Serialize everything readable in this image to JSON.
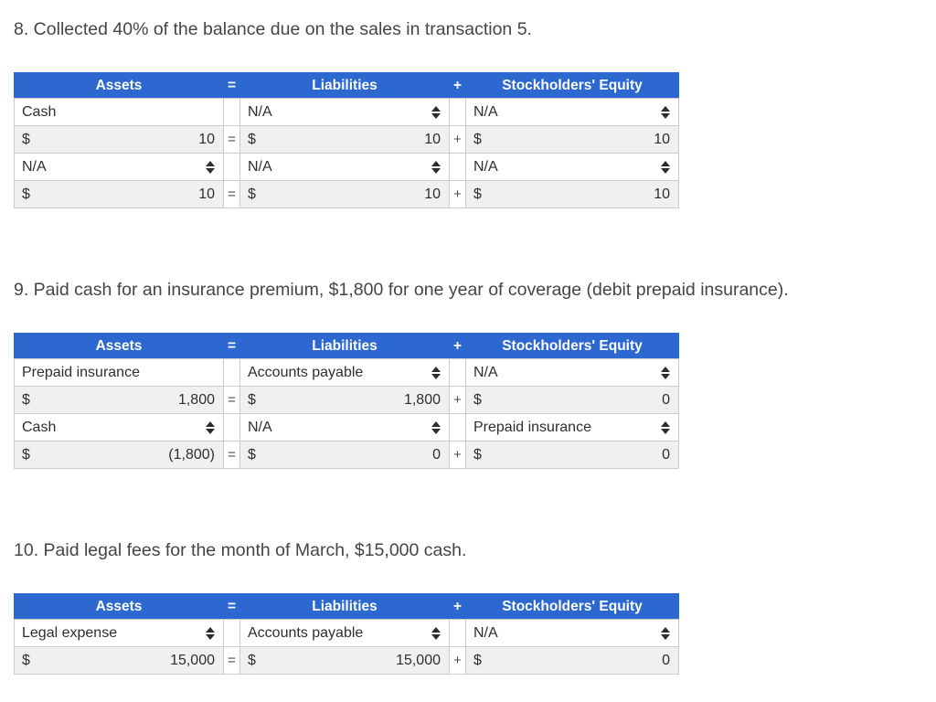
{
  "colors": {
    "header_bg": "#2c68d0",
    "header_text": "#ffffff",
    "stripe_bg": "#f0f0f1",
    "border": "#cbcbcb",
    "text": "#2e2e2e",
    "title": "#454545",
    "operator": "#4f4f4f"
  },
  "icons": {
    "dropdown": "up-down-arrows"
  },
  "table_header": {
    "assets": "Assets",
    "equals": "=",
    "liabilities": "Liabilities",
    "plus": "+",
    "equity": "Stockholders' Equity"
  },
  "operators": {
    "equals": "=",
    "plus": "+",
    "dollar": "$"
  },
  "sections": [
    {
      "title": "8. Collected 40% of the balance due on the sales in transaction 5.",
      "rows": [
        {
          "kind": "accounts",
          "accounts": [
            {
              "label": "Cash",
              "dropdown": false
            },
            {
              "label": "N/A",
              "dropdown": true
            },
            {
              "label": "N/A",
              "dropdown": true
            }
          ]
        },
        {
          "kind": "amounts",
          "values": [
            "10",
            "10",
            "10"
          ]
        },
        {
          "kind": "accounts",
          "accounts": [
            {
              "label": "N/A",
              "dropdown": true
            },
            {
              "label": "N/A",
              "dropdown": true
            },
            {
              "label": "N/A",
              "dropdown": true
            }
          ]
        },
        {
          "kind": "amounts",
          "values": [
            "10",
            "10",
            "10"
          ]
        }
      ]
    },
    {
      "title": "9. Paid cash for an insurance premium, $1,800 for one year of coverage (debit prepaid insurance).",
      "rows": [
        {
          "kind": "accounts",
          "accounts": [
            {
              "label": "Prepaid insurance",
              "dropdown": false
            },
            {
              "label": "Accounts payable",
              "dropdown": true
            },
            {
              "label": "N/A",
              "dropdown": true
            }
          ]
        },
        {
          "kind": "amounts",
          "values": [
            "1,800",
            "1,800",
            "0"
          ]
        },
        {
          "kind": "accounts",
          "accounts": [
            {
              "label": "Cash",
              "dropdown": true
            },
            {
              "label": "N/A",
              "dropdown": true
            },
            {
              "label": "Prepaid insurance",
              "dropdown": true
            }
          ]
        },
        {
          "kind": "amounts",
          "values": [
            "(1,800)",
            "0",
            "0"
          ]
        }
      ]
    },
    {
      "title": "10. Paid legal fees for the month of March, $15,000 cash.",
      "rows": [
        {
          "kind": "accounts",
          "accounts": [
            {
              "label": "Legal expense",
              "dropdown": true
            },
            {
              "label": "Accounts payable",
              "dropdown": true
            },
            {
              "label": "N/A",
              "dropdown": true
            }
          ]
        },
        {
          "kind": "amounts",
          "values": [
            "15,000",
            "15,000",
            "0"
          ]
        }
      ]
    }
  ]
}
